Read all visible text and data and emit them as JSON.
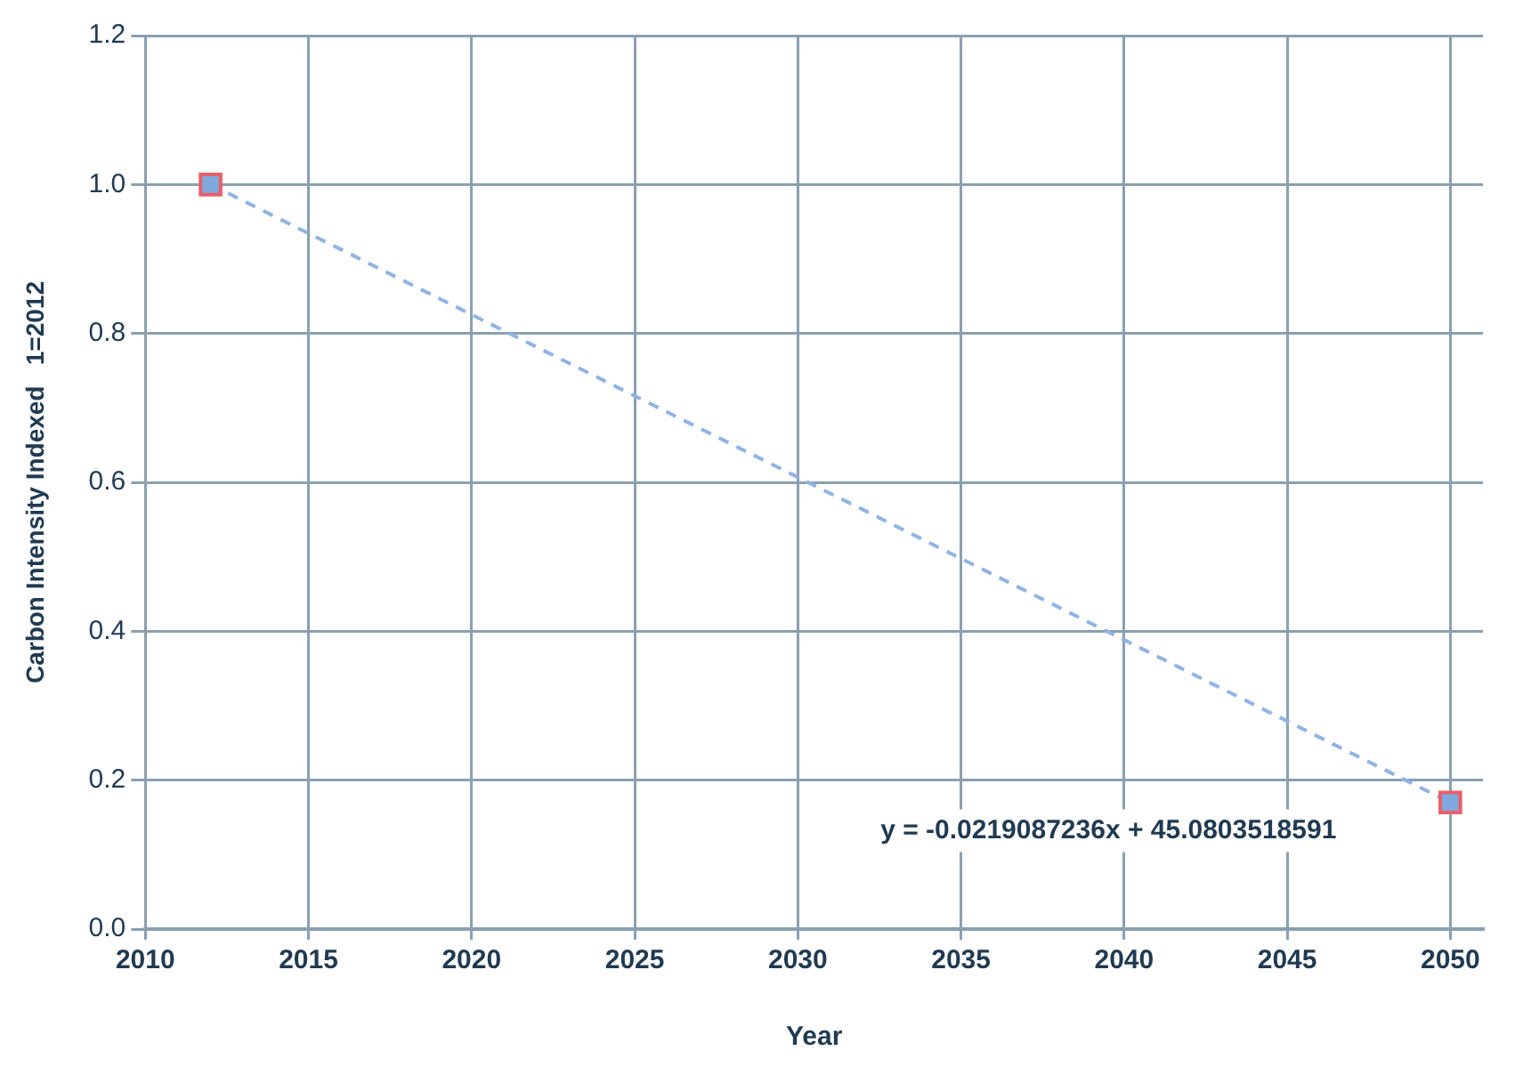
{
  "chart_data": {
    "type": "scatter",
    "xlabel": "Year",
    "ylabel": "Carbon Intensity Indexed   1=2012",
    "x": [
      2012,
      2050
    ],
    "series": [
      {
        "color": "#7fa8dc",
        "marker": "square",
        "values": [
          1.0,
          0.17
        ]
      },
      {
        "type": "line",
        "color": "#8fb4e3",
        "line_style": "dashed",
        "x": [
          2012,
          2050
        ],
        "values": [
          1.0,
          0.17
        ]
      }
    ],
    "xlim": [
      2010,
      2051
    ],
    "xticks": [
      2010,
      2015,
      2020,
      2025,
      2030,
      2035,
      2040,
      2045,
      2050
    ],
    "ylim": [
      0,
      1.2
    ],
    "yticks": [
      {
        "value": 0,
        "label": "0.0"
      },
      0.2,
      0.4,
      0.6,
      0.8,
      {
        "value": 1,
        "label": "1.0"
      },
      1.2
    ],
    "grid": true,
    "legend": false,
    "annotations": [
      "y = -0.0219087236x + 45.0803518591"
    ]
  }
}
